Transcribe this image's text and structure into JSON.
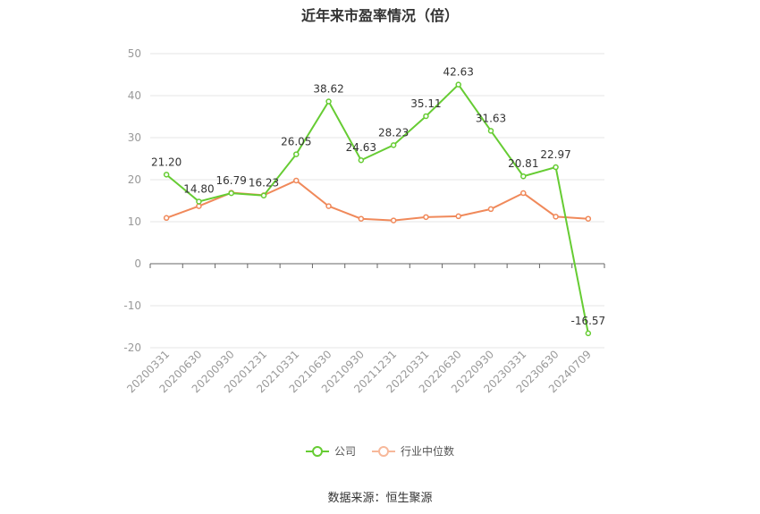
{
  "title": "近年来市盈率情况（倍）",
  "source": "数据来源：恒生聚源",
  "colors": {
    "company": "#66cc33",
    "industry": "#f0895a",
    "grid": "#e6e6e6",
    "axis": "#666666"
  },
  "chart_data": {
    "type": "line",
    "title": "近年来市盈率情况（倍）",
    "categories": [
      "20200331",
      "20200630",
      "20200930",
      "20201231",
      "20210331",
      "20210630",
      "20210930",
      "20211231",
      "20220331",
      "20220630",
      "20220930",
      "20230331",
      "20230630",
      "20240709"
    ],
    "ylim": [
      -20,
      50
    ],
    "yticks": [
      50,
      40,
      30,
      20,
      10,
      0,
      -10,
      -20
    ],
    "grid": true,
    "legend": "bottom",
    "series": [
      {
        "name": "公司",
        "values": [
          21.2,
          14.8,
          16.79,
          16.23,
          26.05,
          38.62,
          24.63,
          28.23,
          35.11,
          42.63,
          31.63,
          20.81,
          22.97,
          -16.57
        ],
        "labels": [
          "21.20",
          "14.80",
          "16.79",
          "16.23",
          "26.05",
          "38.62",
          "24.63",
          "28.23",
          "35.11",
          "42.63",
          "31.63",
          "20.81",
          "22.97",
          "-16.57"
        ]
      },
      {
        "name": "行业中位数",
        "values": [
          10.9,
          13.7,
          16.9,
          16.3,
          19.8,
          13.7,
          10.7,
          10.3,
          11.1,
          11.3,
          13.0,
          16.8,
          11.2,
          10.7
        ]
      }
    ]
  }
}
